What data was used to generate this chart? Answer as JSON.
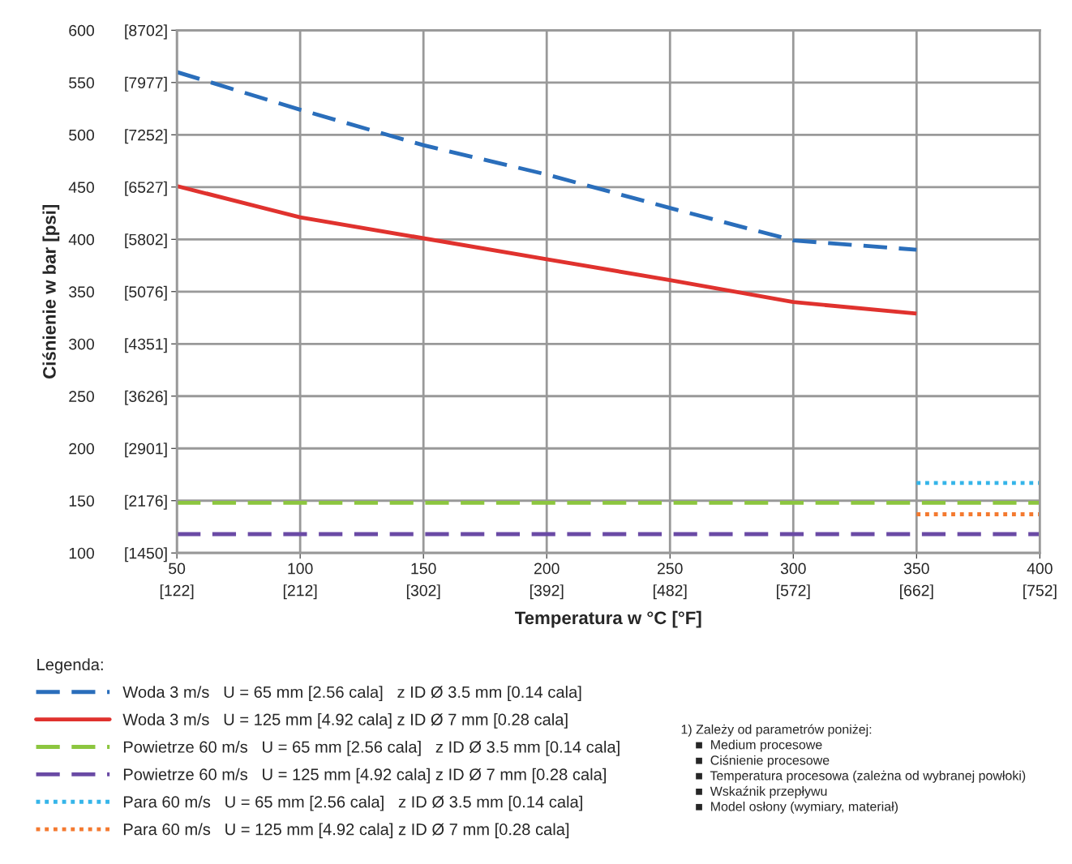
{
  "chart_data": {
    "type": "line",
    "xlabel": "Temperatura w °C [°F]",
    "ylabel": "Ciśnienie w bar [psi]",
    "legend_title": "Legenda:",
    "xlim": [
      50,
      400
    ],
    "ylim": [
      100,
      600
    ],
    "xticks": [
      50,
      100,
      150,
      200,
      250,
      300,
      350,
      400
    ],
    "yticks": [
      100,
      150,
      200,
      250,
      300,
      350,
      400,
      450,
      500,
      550,
      600
    ],
    "x2lim": [
      122,
      752
    ],
    "x2ticks": [
      {
        "value": 122,
        "label": "[122]"
      },
      {
        "value": 212,
        "label": "[212]"
      },
      {
        "value": 302,
        "label": "[302]"
      },
      {
        "value": 392,
        "label": "[392]"
      },
      {
        "value": 482,
        "label": "[482]"
      },
      {
        "value": 572,
        "label": "[572]"
      },
      {
        "value": 662,
        "label": "[662]"
      },
      {
        "value": 752,
        "label": "[752]"
      }
    ],
    "y2lim": [
      1450,
      8702
    ],
    "y2ticks": [
      {
        "value": 1450,
        "label": "[1450]"
      },
      {
        "value": 2176,
        "label": "[2176]"
      },
      {
        "value": 2901,
        "label": "[2901]"
      },
      {
        "value": 3626,
        "label": "[3626]"
      },
      {
        "value": 4351,
        "label": "[4351]"
      },
      {
        "value": 5076,
        "label": "[5076]"
      },
      {
        "value": 5802,
        "label": "[5802]"
      },
      {
        "value": 6527,
        "label": "[6527]"
      },
      {
        "value": 7252,
        "label": "[7252]"
      },
      {
        "value": 7977,
        "label": "[7977]"
      },
      {
        "value": 8702,
        "label": "[8702]"
      }
    ],
    "grid": true,
    "legend": "bottom",
    "series": [
      {
        "name": "Woda 3 m/s   U = 65 mm [2.56 cala]   z ID Ø 3.5 mm [0.14 cala]",
        "color": "#2a6ebb",
        "line_style": "dashed",
        "marker": "none",
        "x": [
          50,
          100,
          150,
          200,
          250,
          300,
          350
        ],
        "values": [
          560,
          524,
          490,
          462,
          430,
          399,
          390
        ]
      },
      {
        "name": "Woda 3 m/s   U = 125 mm [4.92 cala] z ID Ø 7 mm [0.28 cala]",
        "color": "#e0322e",
        "line_style": "solid",
        "marker": "none",
        "x": [
          50,
          100,
          150,
          200,
          250,
          300,
          350
        ],
        "values": [
          451,
          421,
          401,
          381,
          361,
          340,
          329
        ]
      },
      {
        "name": "Powietrze 60 m/s   U = 65 mm [2.56 cala]   z ID Ø 3.5 mm [0.14 cala]",
        "color": "#8cc63f",
        "line_style": "dashed",
        "x": [
          50,
          400
        ],
        "values": [
          148,
          148
        ]
      },
      {
        "name": "Powietrze 60 m/s   U = 125 mm [4.92 cala] z ID Ø 7 mm [0.28 cala]",
        "color": "#6a4aa5",
        "line_style": "dashed",
        "x": [
          50,
          400
        ],
        "values": [
          118,
          118
        ]
      },
      {
        "name": "Para 60 m/s   U = 65 mm [2.56 cala]   z ID Ø 3.5 mm [0.14 cala]",
        "color": "#35b5e9",
        "line_style": "dotted",
        "marker": "none",
        "x": [
          350,
          400
        ],
        "values": [
          167,
          167
        ]
      },
      {
        "name": "Para 60 m/s   U = 125 mm [4.92 cala] z ID Ø 7 mm [0.28 cala]",
        "color": "#f47a30",
        "line_style": "dotted",
        "marker": "none",
        "x": [
          350,
          400
        ],
        "values": [
          137,
          137
        ]
      }
    ],
    "annotations": [
      "1) Zależy od parametrów poniżej:\n    ■  Medium procesowe\n    ■  Ciśnienie procesowe\n    ■  Temperatura procesowa (zależna od wybranej powłoki)\n    ■  Wskaźnik przepływu\n    ■  Model osłony (wymiary, materiał)"
    ]
  }
}
